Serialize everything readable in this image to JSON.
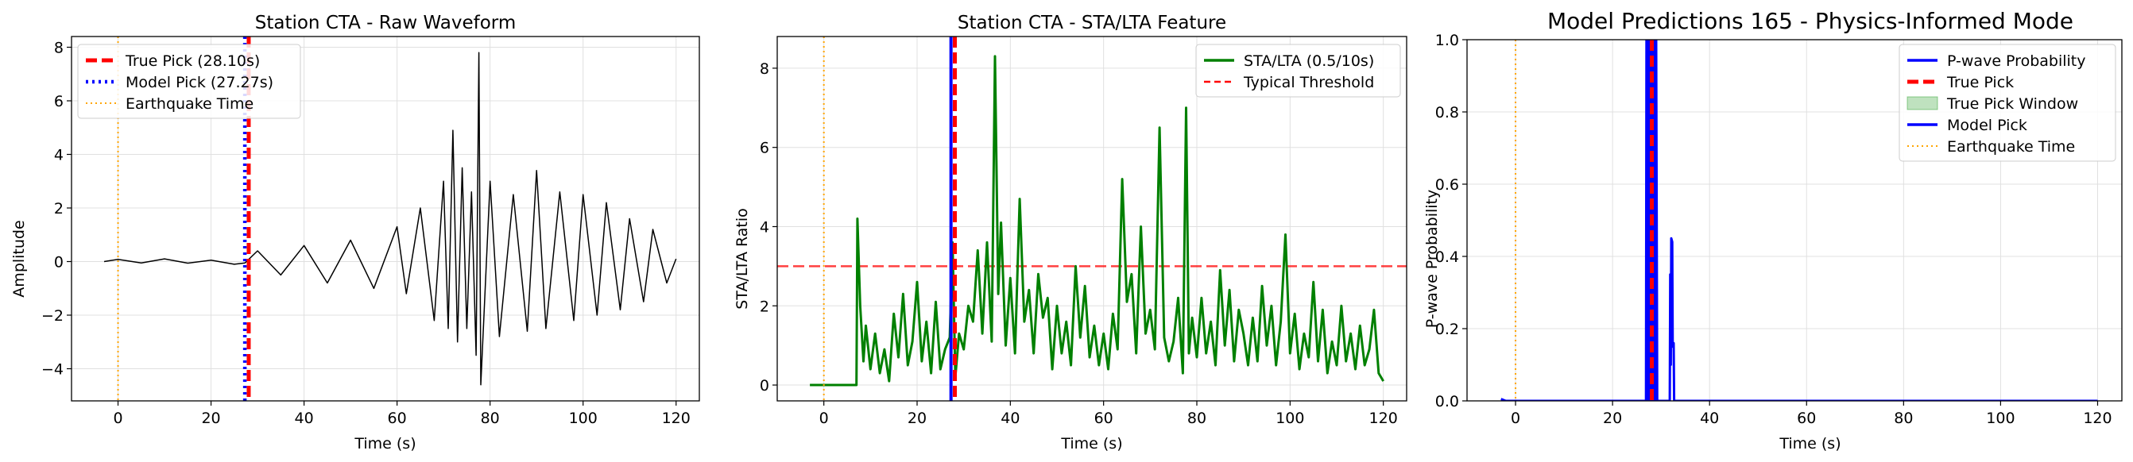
{
  "chart_data": [
    {
      "type": "line",
      "title": "Station CTA - Raw Waveform",
      "xlabel": "Time (s)",
      "ylabel": "Amplitude",
      "xlim": [
        -10,
        125
      ],
      "ylim": [
        -5.2,
        8.4
      ],
      "xticks": [
        0,
        20,
        40,
        60,
        80,
        100,
        120
      ],
      "yticks": [
        -4,
        -2,
        0,
        2,
        4,
        6,
        8
      ],
      "grid": true,
      "legend_position": "top-left",
      "series": [
        {
          "name": "",
          "kind": "waveform",
          "color": "#000000",
          "points": [
            [
              -3,
              0
            ],
            [
              0,
              0.08
            ],
            [
              5,
              -0.05
            ],
            [
              10,
              0.1
            ],
            [
              15,
              -0.06
            ],
            [
              20,
              0.05
            ],
            [
              25,
              -0.1
            ],
            [
              27.3,
              -0.05
            ],
            [
              30,
              0.4
            ],
            [
              35,
              -0.5
            ],
            [
              40,
              0.6
            ],
            [
              45,
              -0.8
            ],
            [
              50,
              0.8
            ],
            [
              55,
              -1.0
            ],
            [
              60,
              1.3
            ],
            [
              62,
              -1.2
            ],
            [
              65,
              2.0
            ],
            [
              68,
              -2.2
            ],
            [
              70,
              3.0
            ],
            [
              71,
              -2.5
            ],
            [
              72,
              4.9
            ],
            [
              73,
              -3.0
            ],
            [
              74,
              3.5
            ],
            [
              75,
              -2.5
            ],
            [
              76,
              2.6
            ],
            [
              77,
              -3.5
            ],
            [
              77.6,
              7.8
            ],
            [
              78,
              -4.6
            ],
            [
              80,
              3.0
            ],
            [
              82,
              -2.8
            ],
            [
              85,
              2.5
            ],
            [
              88,
              -2.6
            ],
            [
              90,
              3.4
            ],
            [
              92,
              -2.5
            ],
            [
              95,
              2.6
            ],
            [
              98,
              -2.2
            ],
            [
              100,
              2.5
            ],
            [
              103,
              -2.0
            ],
            [
              105,
              2.2
            ],
            [
              108,
              -1.8
            ],
            [
              110,
              1.6
            ],
            [
              113,
              -1.5
            ],
            [
              115,
              1.2
            ],
            [
              118,
              -0.8
            ],
            [
              120,
              0.1
            ]
          ]
        }
      ],
      "vlines": [
        {
          "x": 28.1,
          "label": "True Pick (28.10s)",
          "color": "#ff0000",
          "style": "dashed"
        },
        {
          "x": 27.27,
          "label": "Model Pick (27.27s)",
          "color": "#0000ff",
          "style": "dotted"
        },
        {
          "x": 0,
          "label": "Earthquake Time",
          "color": "#ffa500",
          "style": "dotted-thin"
        }
      ]
    },
    {
      "type": "line",
      "title": "Station CTA - STA/LTA Feature",
      "xlabel": "Time (s)",
      "ylabel": "STA/LTA Ratio",
      "xlim": [
        -10,
        125
      ],
      "ylim": [
        -0.4,
        8.8
      ],
      "xticks": [
        0,
        20,
        40,
        60,
        80,
        100,
        120
      ],
      "yticks": [
        0,
        2,
        4,
        6,
        8
      ],
      "grid": true,
      "legend_position": "top-right",
      "series": [
        {
          "name": "STA/LTA (0.5/10s)",
          "color": "#008000",
          "points": [
            [
              -3,
              0
            ],
            [
              7,
              0
            ],
            [
              7.2,
              4.2
            ],
            [
              7.8,
              2.0
            ],
            [
              8.5,
              0.6
            ],
            [
              9,
              1.5
            ],
            [
              10,
              0.4
            ],
            [
              11,
              1.3
            ],
            [
              12,
              0.3
            ],
            [
              13,
              0.9
            ],
            [
              14,
              0.1
            ],
            [
              15,
              1.8
            ],
            [
              16,
              0.7
            ],
            [
              17,
              2.3
            ],
            [
              18,
              0.5
            ],
            [
              19,
              1.1
            ],
            [
              20,
              2.6
            ],
            [
              21,
              0.6
            ],
            [
              22,
              1.6
            ],
            [
              23,
              0.3
            ],
            [
              24,
              2.1
            ],
            [
              25,
              0.4
            ],
            [
              26,
              0.9
            ],
            [
              27,
              1.2
            ],
            [
              27.6,
              3.6
            ],
            [
              28.2,
              0.2
            ],
            [
              29,
              1.3
            ],
            [
              30,
              0.9
            ],
            [
              31,
              2.0
            ],
            [
              32,
              1.6
            ],
            [
              33,
              3.4
            ],
            [
              34,
              1.3
            ],
            [
              35,
              3.6
            ],
            [
              36,
              1.1
            ],
            [
              36.7,
              8.3
            ],
            [
              37.4,
              2.3
            ],
            [
              38,
              4.1
            ],
            [
              39,
              1.0
            ],
            [
              40,
              2.7
            ],
            [
              41,
              0.8
            ],
            [
              42,
              4.7
            ],
            [
              43,
              1.6
            ],
            [
              44,
              2.4
            ],
            [
              45,
              0.8
            ],
            [
              46,
              2.8
            ],
            [
              47,
              1.7
            ],
            [
              48,
              2.2
            ],
            [
              49,
              0.4
            ],
            [
              50,
              2.0
            ],
            [
              51,
              0.8
            ],
            [
              52,
              1.6
            ],
            [
              53,
              0.5
            ],
            [
              54,
              3.0
            ],
            [
              55,
              1.2
            ],
            [
              56,
              2.5
            ],
            [
              57,
              0.7
            ],
            [
              58,
              1.5
            ],
            [
              59,
              0.5
            ],
            [
              60,
              1.3
            ],
            [
              61,
              0.4
            ],
            [
              62,
              1.8
            ],
            [
              63,
              0.9
            ],
            [
              64,
              5.2
            ],
            [
              65,
              2.1
            ],
            [
              66,
              2.8
            ],
            [
              67,
              0.8
            ],
            [
              68,
              4.0
            ],
            [
              69,
              1.3
            ],
            [
              70,
              1.9
            ],
            [
              71,
              0.9
            ],
            [
              72,
              6.5
            ],
            [
              73,
              1.2
            ],
            [
              74,
              0.6
            ],
            [
              75,
              1.1
            ],
            [
              76,
              2.2
            ],
            [
              77,
              0.3
            ],
            [
              77.7,
              7.0
            ],
            [
              78.3,
              0.8
            ],
            [
              79,
              1.7
            ],
            [
              80,
              0.7
            ],
            [
              81,
              2.2
            ],
            [
              82,
              0.8
            ],
            [
              83,
              1.6
            ],
            [
              84,
              0.5
            ],
            [
              85,
              2.9
            ],
            [
              86,
              1.0
            ],
            [
              87,
              2.4
            ],
            [
              88,
              0.6
            ],
            [
              89,
              1.9
            ],
            [
              90,
              1.3
            ],
            [
              91,
              0.5
            ],
            [
              92,
              1.7
            ],
            [
              93,
              0.6
            ],
            [
              94,
              2.5
            ],
            [
              95,
              1.0
            ],
            [
              96,
              2.0
            ],
            [
              97,
              0.5
            ],
            [
              98,
              1.6
            ],
            [
              99,
              3.8
            ],
            [
              100,
              0.8
            ],
            [
              101,
              1.8
            ],
            [
              102,
              0.4
            ],
            [
              103,
              1.3
            ],
            [
              104,
              0.7
            ],
            [
              105,
              2.6
            ],
            [
              106,
              0.6
            ],
            [
              107,
              1.9
            ],
            [
              108,
              0.3
            ],
            [
              109,
              1.1
            ],
            [
              110,
              0.5
            ],
            [
              111,
              2.0
            ],
            [
              112,
              0.6
            ],
            [
              113,
              1.3
            ],
            [
              114,
              0.4
            ],
            [
              115,
              1.5
            ],
            [
              116,
              0.5
            ],
            [
              117,
              0.9
            ],
            [
              118,
              1.9
            ],
            [
              119,
              0.3
            ],
            [
              120,
              0.1
            ]
          ]
        }
      ],
      "hlines": [
        {
          "y": 3,
          "label": "Typical Threshold",
          "color": "#ff0000",
          "style": "dashed"
        }
      ],
      "vlines": [
        {
          "x": 0,
          "label": "",
          "color": "#ffa500",
          "style": "dotted-thin"
        },
        {
          "x": 27.27,
          "label": "",
          "color": "#0000ff",
          "style": "solid"
        },
        {
          "x": 28.1,
          "label": "",
          "color": "#ff0000",
          "style": "dashed"
        }
      ]
    },
    {
      "type": "line",
      "title": "Model Predictions 165 - Physics-Informed Mode",
      "xlabel": "Time (s)",
      "ylabel": "P-wave Probability",
      "xlim": [
        -10,
        125
      ],
      "ylim": [
        0,
        1.0
      ],
      "xticks": [
        0,
        20,
        40,
        60,
        80,
        100,
        120
      ],
      "yticks": [
        0.0,
        0.2,
        0.4,
        0.6,
        0.8,
        1.0
      ],
      "grid": true,
      "legend_position": "top-right",
      "series": [
        {
          "name": "P-wave Probability",
          "color": "#0000ff",
          "points": [
            [
              -3,
              0.005
            ],
            [
              -2,
              0
            ],
            [
              26.9,
              0
            ],
            [
              27.0,
              1.0
            ],
            [
              27.2,
              0
            ],
            [
              27.4,
              1.0
            ],
            [
              27.6,
              0
            ],
            [
              27.8,
              1.0
            ],
            [
              28.0,
              0
            ],
            [
              28.2,
              1.0
            ],
            [
              28.4,
              0
            ],
            [
              28.6,
              1.0
            ],
            [
              28.8,
              0
            ],
            [
              29.0,
              1.0
            ],
            [
              29.2,
              0
            ],
            [
              31.8,
              0
            ],
            [
              31.9,
              0.35
            ],
            [
              32.0,
              0.1
            ],
            [
              32.1,
              0.45
            ],
            [
              32.3,
              0.44
            ],
            [
              32.4,
              0.15
            ],
            [
              32.6,
              0.16
            ],
            [
              32.7,
              0
            ],
            [
              120,
              0
            ]
          ]
        }
      ],
      "spans": [
        {
          "from": 27.5,
          "to": 28.7,
          "label": "True Pick Window",
          "color": "#2ca02c"
        }
      ],
      "vlines": [
        {
          "x": 28.1,
          "label": "True Pick",
          "color": "#ff0000",
          "style": "dashed"
        },
        {
          "x": 27.27,
          "label": "Model Pick",
          "color": "#0000ff",
          "style": "solid"
        },
        {
          "x": 0,
          "label": "Earthquake Time",
          "color": "#ffa500",
          "style": "dotted-thin"
        }
      ],
      "legend_order": [
        "P-wave Probability",
        "True Pick",
        "True Pick Window",
        "Model Pick",
        "Earthquake Time"
      ]
    }
  ]
}
